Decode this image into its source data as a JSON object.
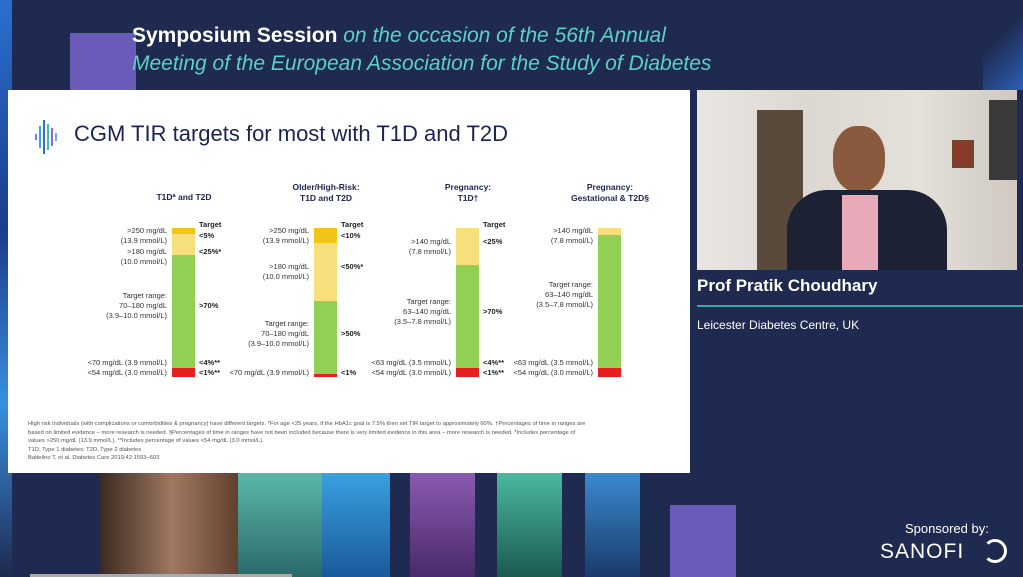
{
  "header": {
    "bold": "Symposium Session",
    "italic_1": "on the occasion of the 56th Annual",
    "italic_2": "Meeting of the European Association for the Study of Diabetes"
  },
  "slide": {
    "title": "CGM TIR targets for most with T1D and T2D",
    "footnote": [
      "High risk individuals (with complications or comorbidities & pregnancy) have different targets. *For age <25 years, if the HbA1c goal is 7.5% then set TIR target to approximately 60%. †Percentages of time in ranges are based on limited evidence – more research is needed. §Percentages of time in ranges have not been included because there is very limited evidence in this area – more research is needed. *Includes percentage of values >250 mg/dL (13.9 mmol/L). **Includes percentage of values <54 mg/dL (3.0 mmol/L).",
      "T1D, Type 1 diabetes; T2D, Type 2 diabetes",
      "Battelino T, et al. Diabetes Care 2019;42:1593–603"
    ]
  },
  "chart_data": {
    "type": "bar",
    "stacked": true,
    "title": "CGM TIR targets for most with T1D and T2D",
    "colors": {
      "very_high": "#f2c319",
      "high": "#f7df7c",
      "target": "#92cf55",
      "low": "#e81f1f"
    },
    "columns": [
      {
        "title": [
          "T1Dª and T2D"
        ],
        "target_header": "Target",
        "segments": [
          {
            "kind": "very_high",
            "share": 4,
            "label": [
              ">250 mg/dL",
              "(13.9 mmol/L)"
            ],
            "target": "<5%"
          },
          {
            "kind": "high",
            "share": 14,
            "label": [
              ">180 mg/dL",
              "(10.0 mmol/L)"
            ],
            "target": "<25%*"
          },
          {
            "kind": "target",
            "share": 76,
            "label": [
              "Target range:",
              "70–180 mg/dL",
              "(3.9–10.0 mmol/L)"
            ],
            "target": ">70%"
          },
          {
            "kind": "low",
            "share": 6,
            "label": [
              "<70 mg/dL (3.9 mmol/L)",
              "<54 mg/dL (3.0 mmol/L)"
            ],
            "target": [
              "<4%**",
              "<1%**"
            ]
          }
        ]
      },
      {
        "title": [
          "Older/High-Risk:",
          "T1D and T2D"
        ],
        "target_header": "Target",
        "segments": [
          {
            "kind": "very_high",
            "share": 10,
            "label": [
              ">250 mg/dL",
              "(13.9 mmol/L)"
            ],
            "target": "<10%"
          },
          {
            "kind": "high",
            "share": 39,
            "label": [
              ">180 mg/dL",
              "(10.0 mmol/L)"
            ],
            "target": "<50%*"
          },
          {
            "kind": "target",
            "share": 49,
            "label": [
              "Target range:",
              "70–180 mg/dL",
              "(3.9–10.0 mmol/L)"
            ],
            "target": ">50%"
          },
          {
            "kind": "low",
            "share": 2,
            "label": [
              "<70 mg/dL (3.9 mmol/L)"
            ],
            "target": [
              "<1%"
            ]
          }
        ]
      },
      {
        "title": [
          "Pregnancy:",
          "T1D†"
        ],
        "target_header": "Target",
        "segments": [
          {
            "kind": "high",
            "share": 25,
            "label": [
              ">140 mg/dL",
              "(7.8 mmol/L)"
            ],
            "target": "<25%"
          },
          {
            "kind": "target",
            "share": 69,
            "label": [
              "Target range:",
              "63–140 mg/dL",
              "(3.5–7.8 mmol/L)"
            ],
            "target": ">70%"
          },
          {
            "kind": "low",
            "share": 6,
            "label": [
              "<63 mg/dL (3.5 mmol/L)",
              "<54 mg/dL (3.0 mmol/L)"
            ],
            "target": [
              "<4%**",
              "<1%**"
            ]
          }
        ]
      },
      {
        "title": [
          "Pregnancy:",
          "Gestational & T2D§"
        ],
        "target_header": "",
        "segments": [
          {
            "kind": "high",
            "share": 5,
            "label": [
              ">140 mg/dL",
              "(7.8 mmol/L)"
            ],
            "target": ""
          },
          {
            "kind": "target",
            "share": 89,
            "label": [
              "Target range:",
              "63–140 mg/dL",
              "(3.5–7.8 mmol/L)"
            ],
            "target": ""
          },
          {
            "kind": "low",
            "share": 6,
            "label": [
              "<63 mg/dL (3.5 mmol/L)",
              "<54 mg/dL (3.0 mmol/L)"
            ],
            "target": []
          }
        ]
      }
    ]
  },
  "speaker": {
    "name": "Prof Pratik Choudhary",
    "affiliation": "Leicester Diabetes Centre, UK"
  },
  "sponsor": {
    "label": "Sponsored by:",
    "name": "SANOFI"
  }
}
